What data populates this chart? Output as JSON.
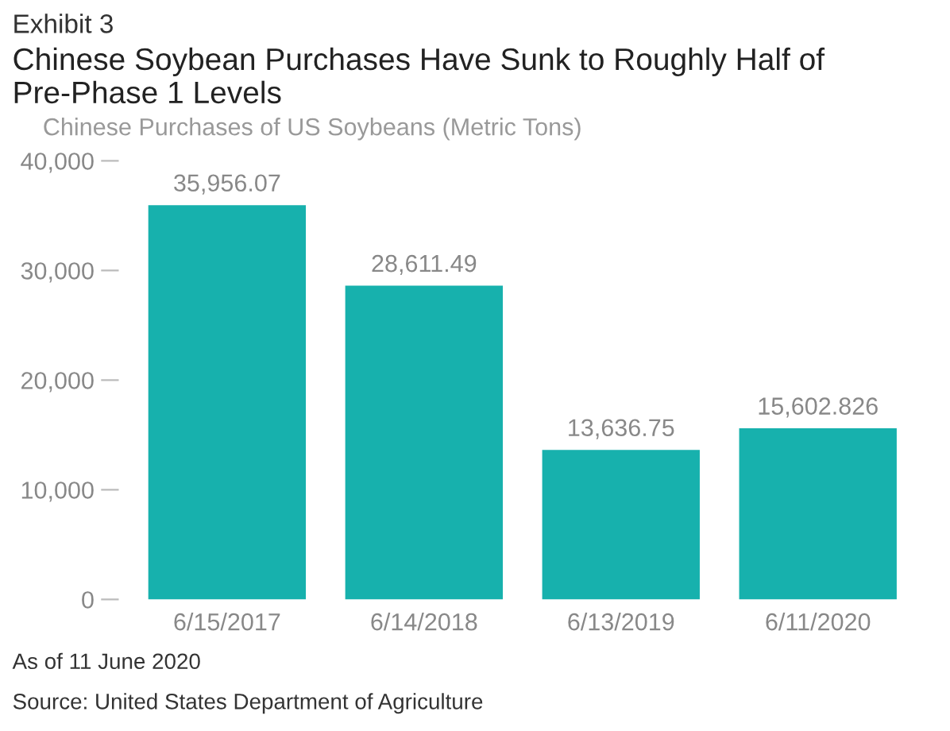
{
  "chart_data": {
    "type": "bar",
    "title": "Exhibit 3",
    "subtitle": "Chinese Soybean Purchases Have Sunk to Roughly Half of Pre-Phase 1 Levels",
    "ylabel": "Chinese Purchases of US Soybeans (Metric Tons)",
    "categories": [
      "6/15/2017",
      "6/14/2018",
      "6/13/2019",
      "6/11/2020"
    ],
    "values": [
      35956.07,
      28611.49,
      13636.75,
      15602.826
    ],
    "value_labels": [
      "35,956.07",
      "28,611.49",
      "13,636.75",
      "15,602.826"
    ],
    "color": "#17b1ad",
    "ylim": [
      0,
      40000
    ],
    "yticks": [
      {
        "value": 0,
        "label": "0"
      },
      {
        "value": 10000,
        "label": "10,000"
      },
      {
        "value": 20000,
        "label": "20,000"
      },
      {
        "value": 30000,
        "label": "30,000"
      },
      {
        "value": 40000,
        "label": "40,000"
      }
    ],
    "annotations": [
      "As of 11 June 2020",
      "Source: United States Department of Agriculture"
    ]
  }
}
